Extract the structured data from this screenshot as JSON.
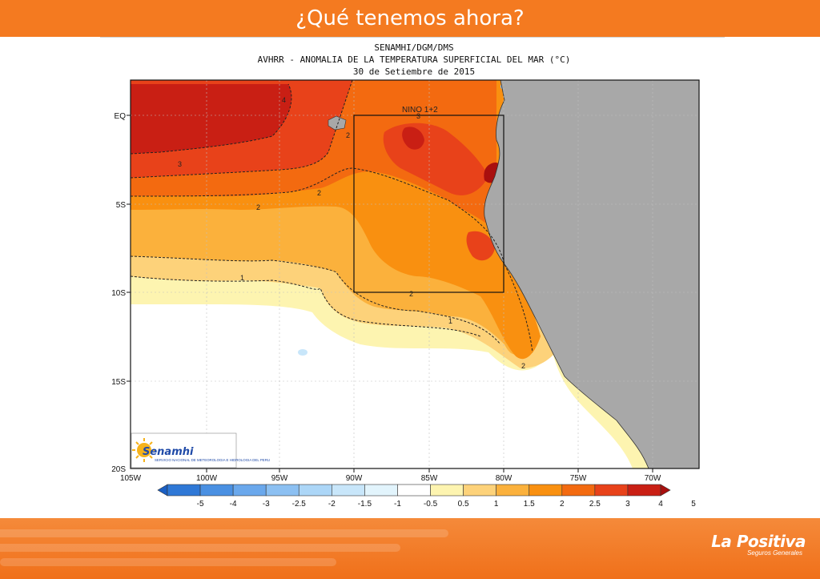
{
  "slide": {
    "title": "¿Qué tenemos ahora?"
  },
  "map": {
    "header_line1": "SENAMHI/DGM/DMS",
    "header_line2": "AVHRR - ANOMALIA DE LA TEMPERATURA SUPERFICIAL DEL MAR (°C)",
    "header_line3": "30 de Setiembre de 2015",
    "box_label": "NINO 1+2",
    "lat_labels": [
      "EQ",
      "5S",
      "10S",
      "15S",
      "20S"
    ],
    "lon_labels": [
      "105W",
      "100W",
      "95W",
      "90W",
      "85W",
      "80W",
      "75W",
      "70W"
    ],
    "contour_labels": [
      "4",
      "3",
      "2",
      "2",
      "2",
      "1",
      "2",
      "3",
      "2",
      "1"
    ]
  },
  "colorbar": {
    "labels": [
      "-5",
      "-4",
      "-3",
      "-2.5",
      "-2",
      "-1.5",
      "-1",
      "-0.5",
      "0.5",
      "1",
      "1.5",
      "2",
      "2.5",
      "3",
      "4",
      "5"
    ],
    "colors": [
      "#1a5fc4",
      "#2f78d6",
      "#4a90e2",
      "#6aa8ec",
      "#8cc0f2",
      "#acd6f7",
      "#c8e6fa",
      "#e2f4fc",
      "#ffffff",
      "#fdf4b0",
      "#fdd27a",
      "#fbb13c",
      "#f99010",
      "#f36a10",
      "#e8421a",
      "#c91f14",
      "#a80f0e"
    ]
  },
  "logo": {
    "name": "Senamhi",
    "subtitle": "SERVICIO NACIONAL DE METEOROLOGIA E HIDROLOGIA DEL PERU"
  },
  "brand": {
    "name": "La Positiva",
    "tagline": "Seguros Generales"
  }
}
